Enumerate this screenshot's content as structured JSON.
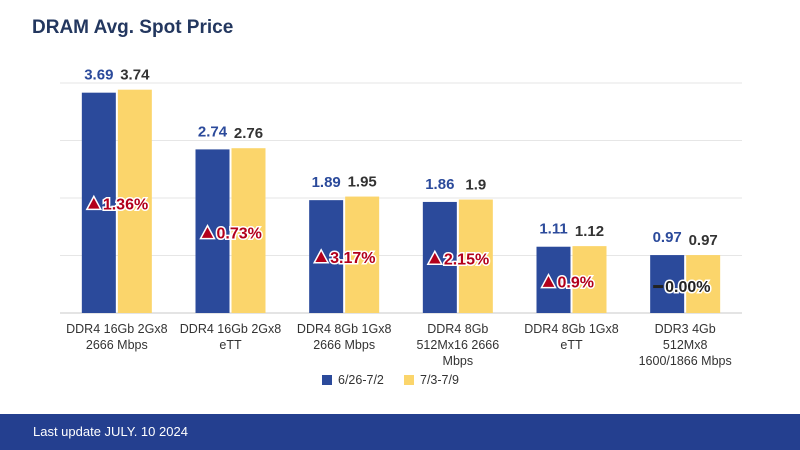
{
  "chart_data": {
    "type": "bar",
    "title": "DRAM Avg. Spot Price",
    "categories": [
      [
        "DDR4 16Gb 2Gx8",
        "2666 Mbps"
      ],
      [
        "DDR4 16Gb 2Gx8",
        "eTT"
      ],
      [
        "DDR4 8Gb 1Gx8",
        "2666 Mbps"
      ],
      [
        "DDR4 8Gb",
        "512Mx16 2666",
        "Mbps"
      ],
      [
        "DDR4 8Gb 1Gx8",
        "eTT"
      ],
      [
        "DDR3 4Gb",
        "512Mx8",
        "1600/1866 Mbps"
      ]
    ],
    "series": [
      {
        "name": "6/26-7/2",
        "values": [
          3.69,
          2.74,
          1.89,
          1.86,
          1.11,
          0.97
        ],
        "labels": [
          "3.69",
          "2.74",
          "1.89",
          "1.86",
          "1.11",
          "0.97"
        ],
        "color": "#2b4a9b"
      },
      {
        "name": "7/3-7/9",
        "values": [
          3.74,
          2.76,
          1.95,
          1.9,
          1.12,
          0.97
        ],
        "labels": [
          "3.74",
          "2.76",
          "1.95",
          "1.9",
          "1.12",
          "0.97"
        ],
        "color": "#fbd56b"
      }
    ],
    "changes": [
      {
        "direction": "up",
        "text": "1.36%"
      },
      {
        "direction": "up",
        "text": "0.73%"
      },
      {
        "direction": "up",
        "text": "3.17%"
      },
      {
        "direction": "up",
        "text": "2.15%"
      },
      {
        "direction": "up",
        "text": "0.9%"
      },
      {
        "direction": "flat",
        "text": "0.00%"
      }
    ],
    "ylim": [
      0,
      4
    ],
    "grid": true,
    "legend": "bottom-center",
    "colors": {
      "value_label_series1": "#2b4a9b",
      "value_label_series2": "#333333",
      "change_text": "#b3001b"
    }
  },
  "footer": {
    "text": "Last update JULY. 10 2024"
  }
}
